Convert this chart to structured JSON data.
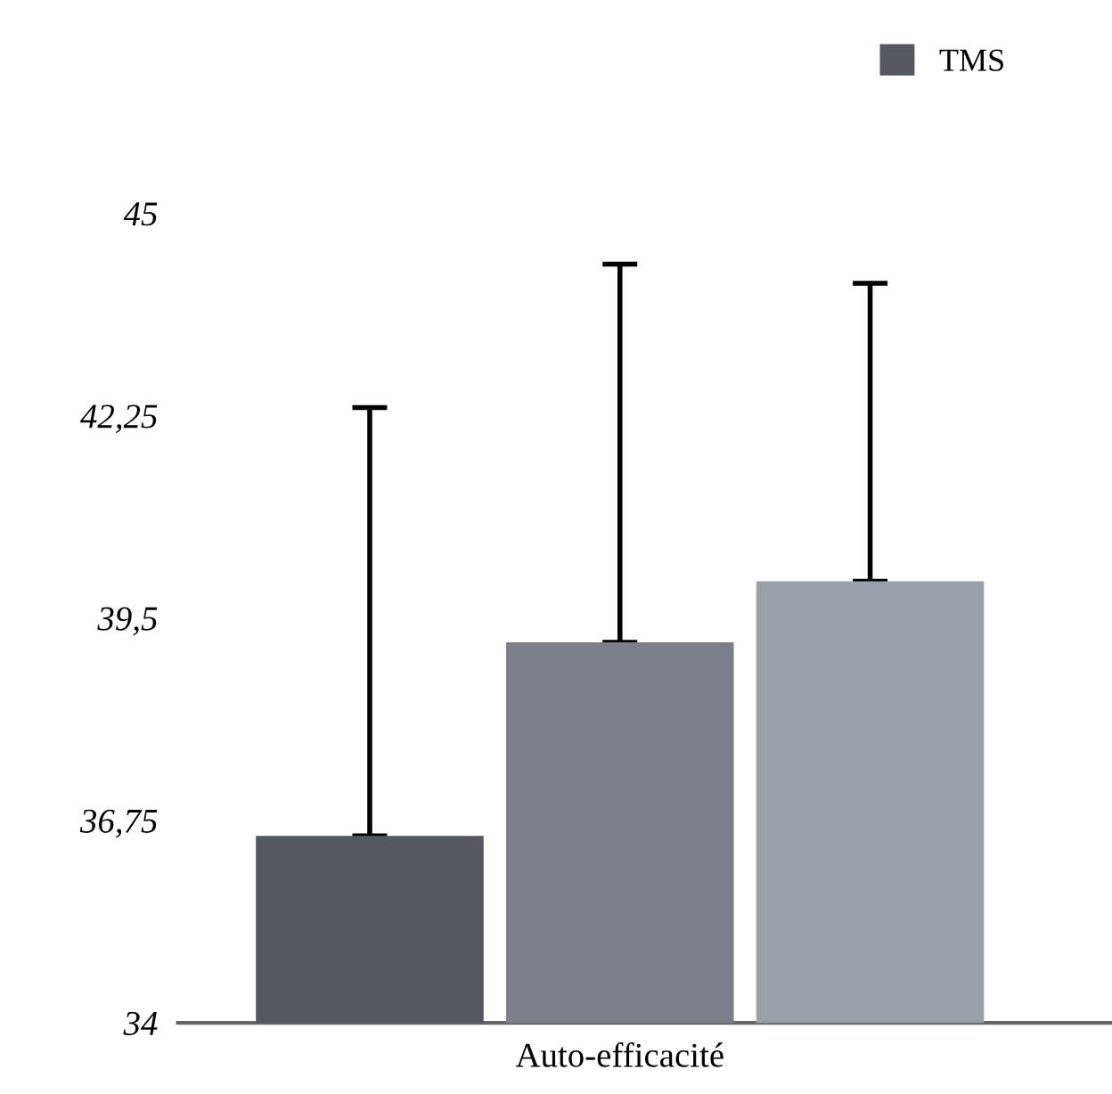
{
  "chart_data": {
    "type": "bar",
    "categories": [
      "Auto-efficacité"
    ],
    "series": [
      {
        "name": "TMS",
        "color": "#545960",
        "values": [
          36.54
        ],
        "errors": [
          [
            36.54,
            42.36
          ]
        ]
      },
      {
        "color": "#7a7f88",
        "values": [
          39.17
        ],
        "errors": [
          [
            39.17,
            44.31
          ]
        ]
      },
      {
        "color": "#98a0a8",
        "values": [
          40.0
        ],
        "errors": [
          [
            40.0,
            44.05
          ]
        ]
      }
    ],
    "ylim": [
      34,
      45
    ],
    "yticks": [
      {
        "value": 34,
        "label": "34"
      },
      {
        "value": 36.75,
        "label": "36,75"
      },
      {
        "value": 39.5,
        "label": "39,5"
      },
      {
        "value": 42.25,
        "label": "42,25"
      },
      {
        "value": 45,
        "label": "45"
      }
    ],
    "grid": false,
    "legend": "top right"
  }
}
